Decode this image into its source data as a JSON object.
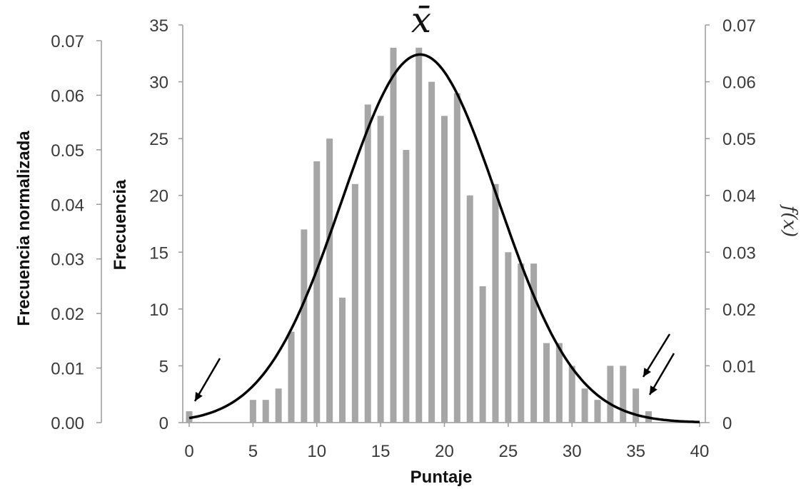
{
  "chart_data": {
    "type": "bar",
    "xlabel": "Puntaje",
    "ylabel": "Frecuencia",
    "y2label": "Frecuencia normalizada",
    "right_label": "f(x)",
    "annotation": "x̄",
    "xlim": [
      -0.5,
      40
    ],
    "ylim": [
      0,
      35
    ],
    "x_ticks": [
      "0",
      "5",
      "10",
      "15",
      "20",
      "25",
      "30",
      "35",
      "40"
    ],
    "y_ticks": [
      "0",
      "5",
      "10",
      "15",
      "20",
      "25",
      "30",
      "35"
    ],
    "left_outer_ticks": [
      "0.00",
      "0.01",
      "0.02",
      "0.03",
      "0.04",
      "0.05",
      "0.06",
      "0.07"
    ],
    "right_ticks": [
      "0",
      "0.01",
      "0.02",
      "0.03",
      "0.04",
      "0.05",
      "0.06",
      "0.07"
    ],
    "bar_color": "#a6a6a6",
    "curve_color": "#000000",
    "bars": [
      {
        "x": 0,
        "y": 1
      },
      {
        "x": 5,
        "y": 2
      },
      {
        "x": 6,
        "y": 2
      },
      {
        "x": 7,
        "y": 3
      },
      {
        "x": 8,
        "y": 8
      },
      {
        "x": 9,
        "y": 17
      },
      {
        "x": 10,
        "y": 23
      },
      {
        "x": 11,
        "y": 25
      },
      {
        "x": 12,
        "y": 11
      },
      {
        "x": 13,
        "y": 21
      },
      {
        "x": 14,
        "y": 28
      },
      {
        "x": 15,
        "y": 27
      },
      {
        "x": 16,
        "y": 33
      },
      {
        "x": 17,
        "y": 24
      },
      {
        "x": 18,
        "y": 33
      },
      {
        "x": 19,
        "y": 30
      },
      {
        "x": 20,
        "y": 27
      },
      {
        "x": 21,
        "y": 29
      },
      {
        "x": 22,
        "y": 20
      },
      {
        "x": 23,
        "y": 12
      },
      {
        "x": 24,
        "y": 21
      },
      {
        "x": 25,
        "y": 15
      },
      {
        "x": 26,
        "y": 14
      },
      {
        "x": 27,
        "y": 14
      },
      {
        "x": 28,
        "y": 7
      },
      {
        "x": 29,
        "y": 7
      },
      {
        "x": 30,
        "y": 5
      },
      {
        "x": 31,
        "y": 3
      },
      {
        "x": 32,
        "y": 2
      },
      {
        "x": 33,
        "y": 5
      },
      {
        "x": 34,
        "y": 5
      },
      {
        "x": 35,
        "y": 3
      },
      {
        "x": 36,
        "y": 1
      }
    ],
    "curve": {
      "type": "normal",
      "mean": 18.1,
      "sd": 6.1,
      "peak_frequency": 32.4,
      "x_range": [
        0,
        40
      ]
    },
    "arrows_point_to": [
      0,
      35,
      36
    ]
  }
}
